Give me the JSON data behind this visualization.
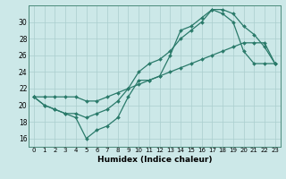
{
  "xlabel": "Humidex (Indice chaleur)",
  "x": [
    0,
    1,
    2,
    3,
    4,
    5,
    6,
    7,
    8,
    9,
    10,
    11,
    12,
    13,
    14,
    15,
    16,
    17,
    18,
    19,
    20,
    21,
    22,
    23
  ],
  "line1": [
    21,
    20,
    19.5,
    19,
    18.5,
    16,
    17,
    17.5,
    18.5,
    21,
    23,
    23,
    23.5,
    26,
    29,
    29.5,
    30.5,
    31.5,
    31,
    30,
    26.5,
    25,
    25,
    25
  ],
  "line2": [
    21,
    20,
    19.5,
    19,
    19,
    18.5,
    19,
    19.5,
    20.5,
    22,
    24,
    25,
    25.5,
    26.5,
    28,
    29,
    30,
    31.5,
    31.5,
    31,
    29.5,
    28.5,
    27,
    25
  ],
  "line3": [
    21,
    21,
    21,
    21,
    21,
    20.5,
    20.5,
    21,
    21.5,
    22,
    22.5,
    23,
    23.5,
    24,
    24.5,
    25,
    25.5,
    26,
    26.5,
    27,
    27.5,
    27.5,
    27.5,
    25
  ],
  "line_color": "#2a7a6a",
  "bg_color": "#cce8e8",
  "grid_color": "#aacece",
  "ylim": [
    15,
    32
  ],
  "yticks": [
    16,
    18,
    20,
    22,
    24,
    26,
    28,
    30
  ],
  "xlim": [
    -0.5,
    23.5
  ],
  "xticks": [
    0,
    1,
    2,
    3,
    4,
    5,
    6,
    7,
    8,
    9,
    10,
    11,
    12,
    13,
    14,
    15,
    16,
    17,
    18,
    19,
    20,
    21,
    22,
    23
  ]
}
